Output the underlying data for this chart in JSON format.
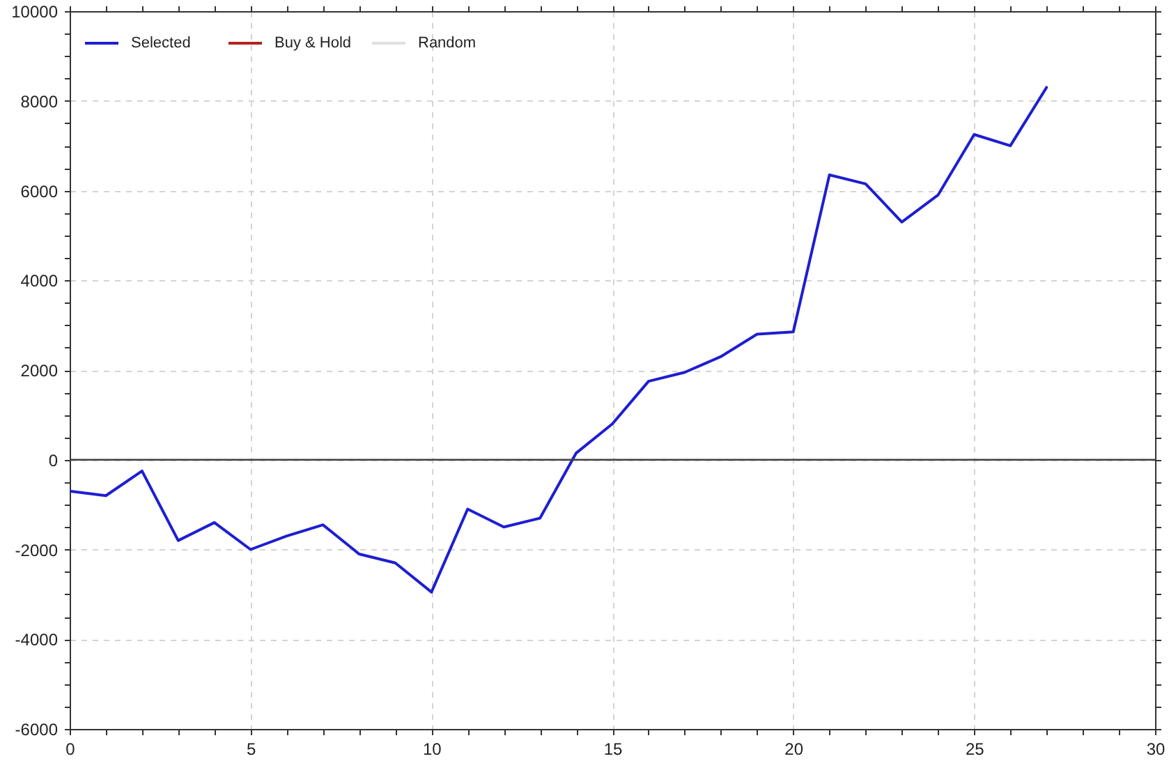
{
  "chart_data": {
    "type": "line",
    "x": [
      0,
      1,
      2,
      3,
      4,
      5,
      6,
      7,
      8,
      9,
      10,
      11,
      12,
      13,
      14,
      15,
      16,
      17,
      18,
      19,
      20,
      21,
      22,
      23,
      24,
      25,
      26,
      27
    ],
    "series": [
      {
        "name": "Selected",
        "color": "#1e1ed2",
        "values": [
          -700,
          -800,
          -250,
          -1800,
          -1400,
          -2000,
          -1700,
          -1450,
          -2100,
          -2300,
          -2950,
          -1100,
          -1500,
          -1300,
          150,
          800,
          1750,
          1950,
          2300,
          2800,
          2850,
          6350,
          6150,
          5300,
          5900,
          7250,
          7000,
          8300
        ]
      },
      {
        "name": "Buy & Hold",
        "color": "#b22222",
        "values": [
          null,
          null,
          null,
          null,
          null,
          null,
          null,
          null,
          null,
          null,
          null,
          null,
          null,
          null,
          null,
          null,
          null,
          null,
          null,
          null,
          null,
          null,
          null,
          null,
          null,
          null,
          null,
          null
        ]
      },
      {
        "name": "Random",
        "color": "#e0e0e0",
        "values": [
          null,
          null,
          null,
          null,
          null,
          null,
          null,
          null,
          null,
          null,
          null,
          null,
          null,
          null,
          null,
          null,
          null,
          null,
          null,
          null,
          null,
          null,
          null,
          null,
          null,
          null,
          null,
          null
        ]
      }
    ],
    "xlim": [
      0,
      30
    ],
    "xticks": [
      0,
      {
        "value": 1,
        "label": null
      },
      {
        "value": 2,
        "label": null
      },
      {
        "value": 3,
        "label": null
      },
      {
        "value": 4,
        "label": null
      },
      5,
      {
        "value": 6,
        "label": null
      },
      {
        "value": 7,
        "label": null
      },
      {
        "value": 8,
        "label": null
      },
      {
        "value": 9,
        "label": null
      },
      10,
      {
        "value": 11,
        "label": null
      },
      {
        "value": 12,
        "label": null
      },
      {
        "value": 13,
        "label": null
      },
      {
        "value": 14,
        "label": null
      },
      15,
      {
        "value": 16,
        "label": null
      },
      {
        "value": 17,
        "label": null
      },
      {
        "value": 18,
        "label": null
      },
      {
        "value": 19,
        "label": null
      },
      20,
      {
        "value": 21,
        "label": null
      },
      {
        "value": 22,
        "label": null
      },
      {
        "value": 23,
        "label": null
      },
      {
        "value": 24,
        "label": null
      },
      25,
      {
        "value": 26,
        "label": null
      },
      {
        "value": 27,
        "label": null
      },
      {
        "value": 28,
        "label": null
      },
      {
        "value": 29,
        "label": null
      },
      30
    ],
    "ylim": [
      -6000,
      10000
    ],
    "yticks": [
      -6000,
      {
        "value": -5500,
        "label": null
      },
      {
        "value": -5000,
        "label": null
      },
      {
        "value": -4500,
        "label": null
      },
      -4000,
      {
        "value": -3500,
        "label": null
      },
      {
        "value": -3000,
        "label": null
      },
      {
        "value": -2500,
        "label": null
      },
      -2000,
      {
        "value": -1500,
        "label": null
      },
      {
        "value": -1000,
        "label": null
      },
      {
        "value": -500,
        "label": null
      },
      0,
      {
        "value": 500,
        "label": null
      },
      {
        "value": 1000,
        "label": null
      },
      {
        "value": 1500,
        "label": null
      },
      2000,
      {
        "value": 2500,
        "label": null
      },
      {
        "value": 3000,
        "label": null
      },
      {
        "value": 3500,
        "label": null
      },
      4000,
      {
        "value": 4500,
        "label": null
      },
      {
        "value": 5000,
        "label": null
      },
      {
        "value": 5500,
        "label": null
      },
      6000,
      {
        "value": 6500,
        "label": null
      },
      {
        "value": 7000,
        "label": null
      },
      {
        "value": 7500,
        "label": null
      },
      8000,
      {
        "value": 8500,
        "label": null
      },
      {
        "value": 9000,
        "label": null
      },
      {
        "value": 9500,
        "label": null
      },
      10000
    ],
    "ref_lines": [
      {
        "axis": "y",
        "value": 0,
        "color": "#404040"
      }
    ],
    "grid": true,
    "legend": "top left"
  }
}
